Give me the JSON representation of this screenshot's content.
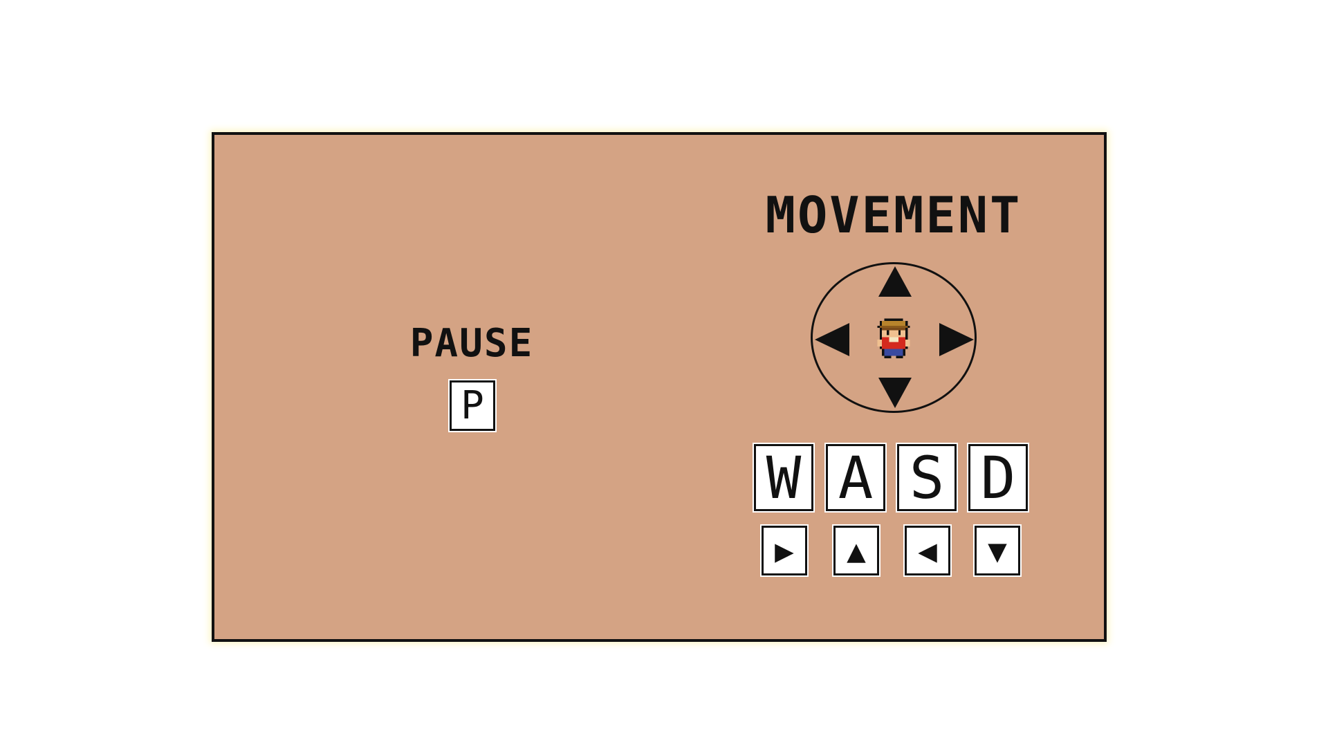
{
  "pause": {
    "title": "PAUSE",
    "key": "P"
  },
  "movement": {
    "title": "MOVEMENT",
    "keys": [
      "W",
      "A",
      "S",
      "D"
    ],
    "arrow_keys": [
      "▶",
      "▲",
      "◀",
      "▼"
    ],
    "dpad_icons": [
      "up-arrow-icon",
      "down-arrow-icon",
      "left-arrow-icon",
      "right-arrow-icon"
    ],
    "character_icon": "farmer-character-icon"
  },
  "colors": {
    "panel_background": "#d4a384",
    "panel_border": "#111111",
    "panel_glow": "#fdf6c7",
    "key_background": "#ffffff",
    "character_hat": "#b8842c",
    "character_shirt": "#d42a1e"
  }
}
